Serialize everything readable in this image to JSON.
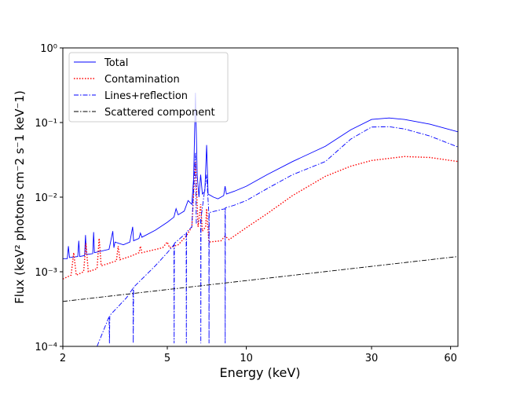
{
  "chart_data": {
    "type": "line",
    "xlabel": "Energy (keV)",
    "ylabel": "Flux (keV² photons cm⁻2 s⁻1 keV⁻1)",
    "xscale": "log",
    "yscale": "log",
    "xlim": [
      2,
      64
    ],
    "ylim": [
      0.0001,
      1
    ],
    "xticks": [
      2,
      5,
      10,
      30,
      60
    ],
    "yticks": [
      {
        "value": 0.0001,
        "label": "10⁻⁴"
      },
      {
        "value": 0.001,
        "label": "10⁻³"
      },
      {
        "value": 0.01,
        "label": "10⁻²"
      },
      {
        "value": 0.1,
        "label": "10⁻¹"
      },
      {
        "value": 1,
        "label": "10⁰"
      }
    ],
    "legend": "upper left",
    "series": [
      {
        "name": "Total",
        "color": "#0000ff",
        "linestyle": "solid",
        "x": [
          2,
          2.08,
          2.1,
          2.12,
          2.28,
          2.3,
          2.32,
          2.42,
          2.44,
          2.46,
          2.6,
          2.62,
          2.64,
          3.0,
          3.1,
          3.13,
          3.16,
          3.4,
          3.6,
          3.69,
          3.72,
          3.9,
          3.95,
          4.0,
          4.5,
          5.0,
          5.3,
          5.4,
          5.5,
          5.8,
          6.0,
          6.2,
          6.3,
          6.4,
          6.5,
          6.6,
          6.7,
          6.8,
          6.95,
          7.06,
          7.15,
          7.5,
          7.8,
          8.2,
          8.3,
          8.4,
          9,
          10,
          12,
          15,
          20,
          25,
          30,
          35,
          40,
          50,
          64
        ],
        "values": [
          0.0015,
          0.0015,
          0.0022,
          0.00155,
          0.0016,
          0.0026,
          0.0016,
          0.00165,
          0.0031,
          0.0017,
          0.00175,
          0.0034,
          0.0018,
          0.002,
          0.0035,
          0.0021,
          0.0025,
          0.0023,
          0.0025,
          0.004,
          0.0026,
          0.0028,
          0.0033,
          0.0029,
          0.0036,
          0.0046,
          0.0054,
          0.007,
          0.0058,
          0.0065,
          0.009,
          0.008,
          0.018,
          0.25,
          0.02,
          0.01,
          0.02,
          0.011,
          0.012,
          0.05,
          0.011,
          0.01,
          0.0095,
          0.0105,
          0.014,
          0.011,
          0.012,
          0.014,
          0.02,
          0.03,
          0.048,
          0.08,
          0.11,
          0.115,
          0.11,
          0.095,
          0.075
        ]
      },
      {
        "name": "Contamination",
        "color": "#ff0000",
        "linestyle": "dotted",
        "x": [
          2,
          2.15,
          2.2,
          2.25,
          2.4,
          2.45,
          2.5,
          2.7,
          2.75,
          2.8,
          3.0,
          3.2,
          3.25,
          3.3,
          3.6,
          3.9,
          3.95,
          4.0,
          4.8,
          5.0,
          5.1,
          5.5,
          5.9,
          6.2,
          6.4,
          6.55,
          6.7,
          6.8,
          7.0,
          7.06,
          7.2,
          8.0,
          8.3,
          8.6,
          10,
          12,
          15,
          20,
          25,
          30,
          40,
          50,
          64
        ],
        "values": [
          0.0008,
          0.0009,
          0.0018,
          0.0009,
          0.001,
          0.0024,
          0.001,
          0.0011,
          0.0028,
          0.0012,
          0.0013,
          0.0014,
          0.0022,
          0.00145,
          0.0016,
          0.0018,
          0.0022,
          0.0018,
          0.0021,
          0.0025,
          0.0021,
          0.0023,
          0.003,
          0.004,
          0.03,
          0.004,
          0.008,
          0.0035,
          0.004,
          0.007,
          0.0025,
          0.0026,
          0.003,
          0.0027,
          0.0039,
          0.006,
          0.0105,
          0.019,
          0.026,
          0.031,
          0.035,
          0.034,
          0.03
        ]
      },
      {
        "name": "Lines+reflection",
        "color": "#0000ff",
        "linestyle": "dashdot",
        "x": [
          2.7,
          3.0,
          3.01,
          3.02,
          3.5,
          3.7,
          3.71,
          3.72,
          4.5,
          5.0,
          5.3,
          5.31,
          5.32,
          5.9,
          5.91,
          5.92,
          6.2,
          6.4,
          6.45,
          6.7,
          6.71,
          6.72,
          7.06,
          7.2,
          7.21,
          7.22,
          7.6,
          8.3,
          8.31,
          8.32,
          9,
          10,
          12,
          15,
          20,
          25,
          30,
          35,
          40,
          50,
          64
        ],
        "values": [
          0.0001,
          0.00025,
          0.00011,
          0.00026,
          0.00045,
          0.0006,
          0.00011,
          0.00062,
          0.0012,
          0.0018,
          0.0023,
          0.00011,
          0.0024,
          0.0033,
          0.00011,
          0.0034,
          0.004,
          0.04,
          0.0045,
          0.005,
          0.00011,
          0.0052,
          0.02,
          0.006,
          0.00011,
          0.0062,
          0.0065,
          0.007,
          0.00011,
          0.0072,
          0.0078,
          0.009,
          0.013,
          0.02,
          0.03,
          0.06,
          0.087,
          0.088,
          0.082,
          0.066,
          0.047
        ]
      },
      {
        "name": "Scattered component",
        "color": "#000000",
        "linestyle": "dashdot",
        "x": [
          2,
          64
        ],
        "values": [
          0.0004,
          0.0016
        ]
      }
    ]
  }
}
